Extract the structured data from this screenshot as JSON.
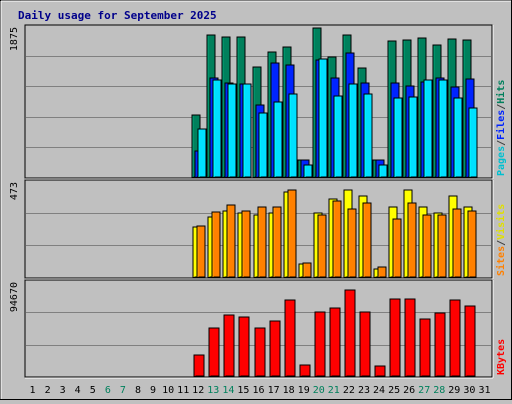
{
  "chart_data": {
    "type": "bar",
    "title": "Daily usage for September 2025",
    "days": [
      "1",
      "2",
      "3",
      "4",
      "5",
      "6",
      "7",
      "8",
      "9",
      "10",
      "11",
      "12",
      "13",
      "14",
      "15",
      "16",
      "17",
      "18",
      "19",
      "20",
      "21",
      "22",
      "23",
      "24",
      "25",
      "26",
      "27",
      "28",
      "29",
      "30",
      "31"
    ],
    "weekend_days": [
      "6",
      "7",
      "13",
      "14",
      "20",
      "21",
      "27",
      "28"
    ],
    "grid": true,
    "colors": {
      "background": "#c0c0c0",
      "title": "#00008b",
      "hits": "#00805c",
      "files": "#0024ff",
      "pages": "#00e0ff",
      "visits": "#ffff00",
      "sites": "#ff8000",
      "kbytes": "#ff0000",
      "weekend_label": "#00805c",
      "weekday_label": "#000000"
    },
    "panels": [
      {
        "name": "pages-files-hits",
        "ymax_label": "1875",
        "ymax": 1875,
        "legend": [
          {
            "text": "Pages",
            "color": "#00c0d0"
          },
          {
            "text": "/",
            "color": "#404040"
          },
          {
            "text": "Files",
            "color": "#0024ff"
          },
          {
            "text": "/",
            "color": "#404040"
          },
          {
            "text": "Hits",
            "color": "#00805c"
          }
        ],
        "series": [
          {
            "name": "Hits",
            "color": "#00805c",
            "values": [
              0,
              0,
              0,
              0,
              0,
              0,
              0,
              0,
              0,
              0,
              0,
              780,
              1790,
              1760,
              1760,
              1390,
              1570,
              1630,
              220,
              1870,
              1510,
              1790,
              1370,
              220,
              1710,
              1720,
              1750,
              1660,
              1740,
              1720,
              0
            ]
          },
          {
            "name": "Files",
            "color": "#0024ff",
            "values": [
              0,
              0,
              0,
              0,
              0,
              0,
              0,
              0,
              0,
              0,
              0,
              330,
              1240,
              1180,
              1170,
              900,
              1430,
              1410,
              210,
              1470,
              1250,
              1560,
              1180,
              220,
              1180,
              1150,
              1200,
              1250,
              1130,
              1230,
              0
            ]
          },
          {
            "name": "Pages",
            "color": "#00e0ff",
            "values": [
              0,
              0,
              0,
              0,
              0,
              0,
              0,
              0,
              0,
              0,
              0,
              610,
              1220,
              1170,
              1170,
              810,
              950,
              1040,
              150,
              1490,
              1020,
              1170,
              1040,
              150,
              1000,
              1010,
              1220,
              1220,
              990,
              870,
              0
            ]
          }
        ]
      },
      {
        "name": "visits-sites",
        "ymax_label": "473",
        "ymax": 473,
        "legend": [
          {
            "text": "Sites",
            "color": "#ff8000"
          },
          {
            "text": "/",
            "color": "#404040"
          },
          {
            "text": "Visits",
            "color": "#e0e000"
          }
        ],
        "series": [
          {
            "name": "Visits",
            "color": "#ffff00",
            "values": [
              0,
              0,
              0,
              0,
              0,
              0,
              0,
              0,
              0,
              0,
              0,
              250,
              300,
              330,
              320,
              310,
              320,
              430,
              65,
              320,
              390,
              440,
              410,
              40,
              350,
              440,
              350,
              320,
              410,
              350,
              0
            ]
          },
          {
            "name": "Sites",
            "color": "#ff8000",
            "values": [
              0,
              0,
              0,
              0,
              0,
              0,
              0,
              0,
              0,
              0,
              0,
              255,
              325,
              360,
              330,
              350,
              350,
              440,
              68,
              310,
              380,
              340,
              370,
              50,
              290,
              370,
              310,
              310,
              340,
              330,
              0
            ]
          }
        ]
      },
      {
        "name": "kbytes",
        "ymax_label": "94670",
        "ymax": 94670,
        "legend": [
          {
            "text": "KBytes",
            "color": "#ff0000"
          }
        ],
        "series": [
          {
            "name": "KBytes",
            "color": "#ff0000",
            "values": [
              0,
              0,
              0,
              0,
              0,
              0,
              0,
              0,
              0,
              0,
              0,
              21000,
              49000,
              62000,
              60000,
              49000,
              56000,
              77000,
              11000,
              65000,
              69000,
              88000,
              65000,
              10000,
              78000,
              78000,
              58000,
              64000,
              77000,
              71000,
              0
            ]
          }
        ]
      }
    ]
  }
}
